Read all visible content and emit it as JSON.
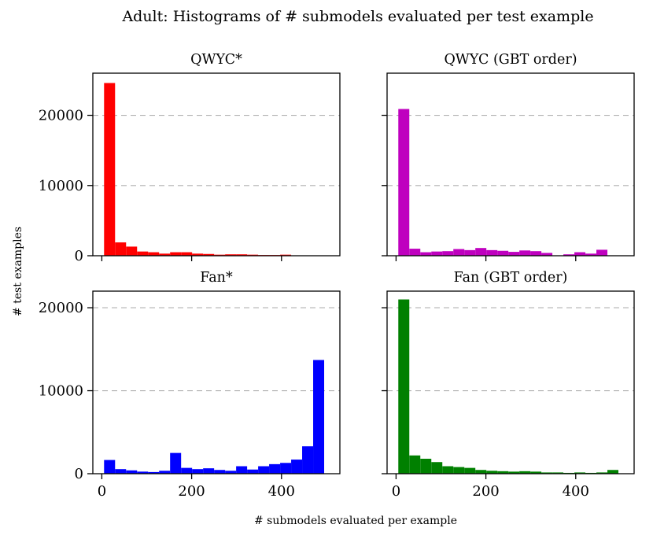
{
  "figure": {
    "suptitle": "Adult: Histograms of # submodels evaluated per test example",
    "xlabel": "# submodels evaluated per example",
    "ylabel": "# test examples"
  },
  "chart_data": [
    {
      "type": "bar",
      "title": "QWYC*",
      "color": "#ff0000",
      "bin_start": 5,
      "bin_width": 24.5,
      "values": [
        24600,
        1900,
        1300,
        600,
        500,
        300,
        500,
        500,
        300,
        250,
        150,
        200,
        200,
        150,
        100,
        100,
        150
      ],
      "xlim": [
        -20,
        530
      ],
      "ylim": [
        0,
        26000
      ],
      "xticks": [
        0,
        200,
        400
      ],
      "yticks": [
        0,
        10000,
        20000
      ],
      "show_xticklabels": false,
      "show_yticklabels": true,
      "grid": true
    },
    {
      "type": "bar",
      "title": "QWYC (GBT order)",
      "color": "#bf00bf",
      "bin_start": 5,
      "bin_width": 24.5,
      "values": [
        20900,
        1000,
        500,
        600,
        650,
        950,
        800,
        1100,
        800,
        700,
        550,
        750,
        650,
        400,
        0,
        200,
        500,
        300,
        850
      ],
      "xlim": [
        -20,
        530
      ],
      "ylim": [
        0,
        26000
      ],
      "xticks": [
        0,
        200,
        400
      ],
      "yticks": [
        0,
        10000,
        20000
      ],
      "show_xticklabels": false,
      "show_yticklabels": false,
      "grid": true
    },
    {
      "type": "bar",
      "title": "Fan*",
      "color": "#0000ff",
      "bin_start": 5,
      "bin_width": 24.5,
      "values": [
        1650,
        550,
        400,
        250,
        200,
        350,
        2500,
        700,
        550,
        650,
        450,
        350,
        900,
        500,
        900,
        1150,
        1300,
        1700,
        3300,
        13700
      ],
      "xlim": [
        -20,
        530
      ],
      "ylim": [
        0,
        22000
      ],
      "xticks": [
        0,
        200,
        400
      ],
      "yticks": [
        0,
        10000,
        20000
      ],
      "show_xticklabels": true,
      "show_yticklabels": true,
      "grid": true
    },
    {
      "type": "bar",
      "title": "Fan (GBT order)",
      "color": "#008000",
      "bin_start": 5,
      "bin_width": 24.5,
      "values": [
        21000,
        2200,
        1800,
        1400,
        900,
        800,
        700,
        450,
        350,
        300,
        250,
        300,
        250,
        150,
        150,
        100,
        150,
        100,
        150,
        450
      ],
      "xlim": [
        -20,
        530
      ],
      "ylim": [
        0,
        22000
      ],
      "xticks": [
        0,
        200,
        400
      ],
      "yticks": [
        0,
        10000,
        20000
      ],
      "show_xticklabels": true,
      "show_yticklabels": false,
      "grid": true
    }
  ]
}
